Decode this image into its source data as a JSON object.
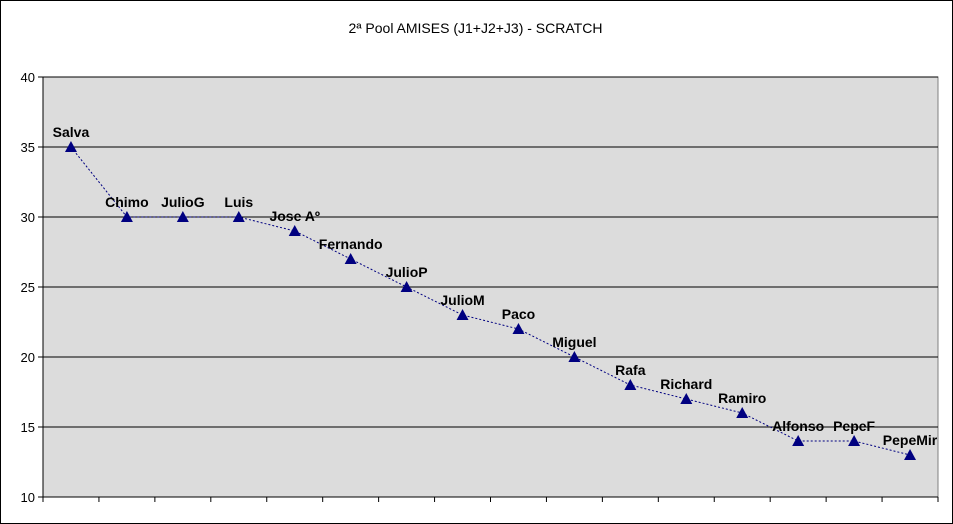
{
  "chart_data": {
    "type": "line",
    "title": "2ª Pool AMISES (J1+J2+J3) - SCRATCH",
    "xlabel": "",
    "ylabel": "",
    "ylim": [
      10,
      40
    ],
    "yticks": [
      10,
      15,
      20,
      25,
      30,
      35,
      40
    ],
    "grid": true,
    "legend": "none",
    "marker": "triangle",
    "line_style": "dotted",
    "colors": {
      "series": "#000080",
      "plot_bg": "#dcdcdc",
      "gridline": "#000000"
    },
    "categories": [
      "Salva",
      "Chimo",
      "JulioG",
      "Luis",
      "Jose Aº",
      "Fernando",
      "JulioP",
      "JulioM",
      "Paco",
      "Miguel",
      "Rafa",
      "Richard",
      "Ramiro",
      "Alfonso",
      "PepeF",
      "PepeMir"
    ],
    "values": [
      35,
      30,
      30,
      30,
      29,
      27,
      25,
      23,
      22,
      20,
      18,
      17,
      16,
      14,
      14,
      13
    ]
  }
}
